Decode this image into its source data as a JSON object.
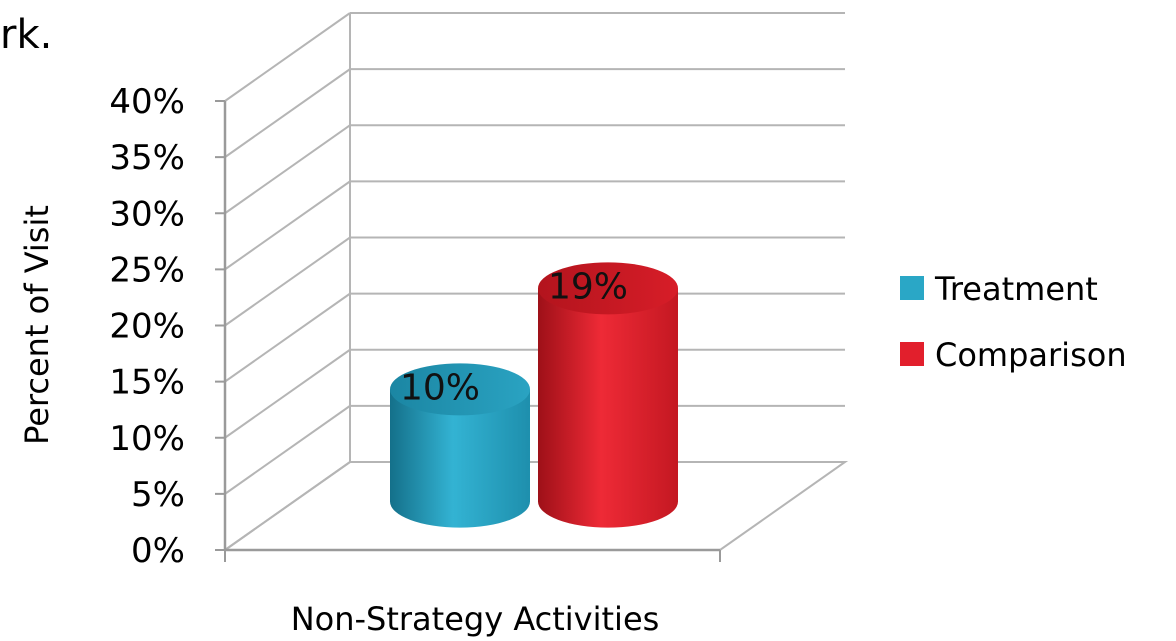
{
  "fragment_text": "rk.",
  "chart_data": {
    "type": "bar",
    "style": "3d-cylinder",
    "categories": [
      "Non-Strategy Activities"
    ],
    "series": [
      {
        "name": "Treatment",
        "values": [
          10
        ],
        "color": "#2AA7C6",
        "data_label": "10%"
      },
      {
        "name": "Comparison",
        "values": [
          19
        ],
        "color": "#E21F2C",
        "data_label": "19%"
      }
    ],
    "ylabel": "Percent of Visit",
    "xlabel": "",
    "ylim": [
      0,
      40
    ],
    "yticks": [
      0,
      5,
      10,
      15,
      20,
      25,
      30,
      35,
      40
    ],
    "ytick_labels": [
      "0%",
      "5%",
      "10%",
      "15%",
      "20%",
      "25%",
      "30%",
      "35%",
      "40%"
    ],
    "grid": true,
    "legend": {
      "placement": "right",
      "entries": [
        "Treatment",
        "Comparison"
      ]
    }
  }
}
